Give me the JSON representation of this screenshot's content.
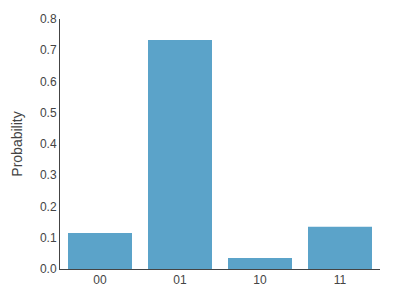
{
  "chart_data": {
    "type": "bar",
    "categories": [
      "00",
      "01",
      "10",
      "11"
    ],
    "values": [
      0.115,
      0.733,
      0.035,
      0.135
    ],
    "color": "#5BA3C9",
    "ylabel": "Probability",
    "ylim": [
      0,
      0.8
    ],
    "yticks": [
      {
        "value": 0.0,
        "label": "0.0"
      },
      0.1,
      0.2,
      0.3,
      0.4,
      0.5,
      0.6,
      0.7,
      0.8
    ],
    "grid": false
  }
}
